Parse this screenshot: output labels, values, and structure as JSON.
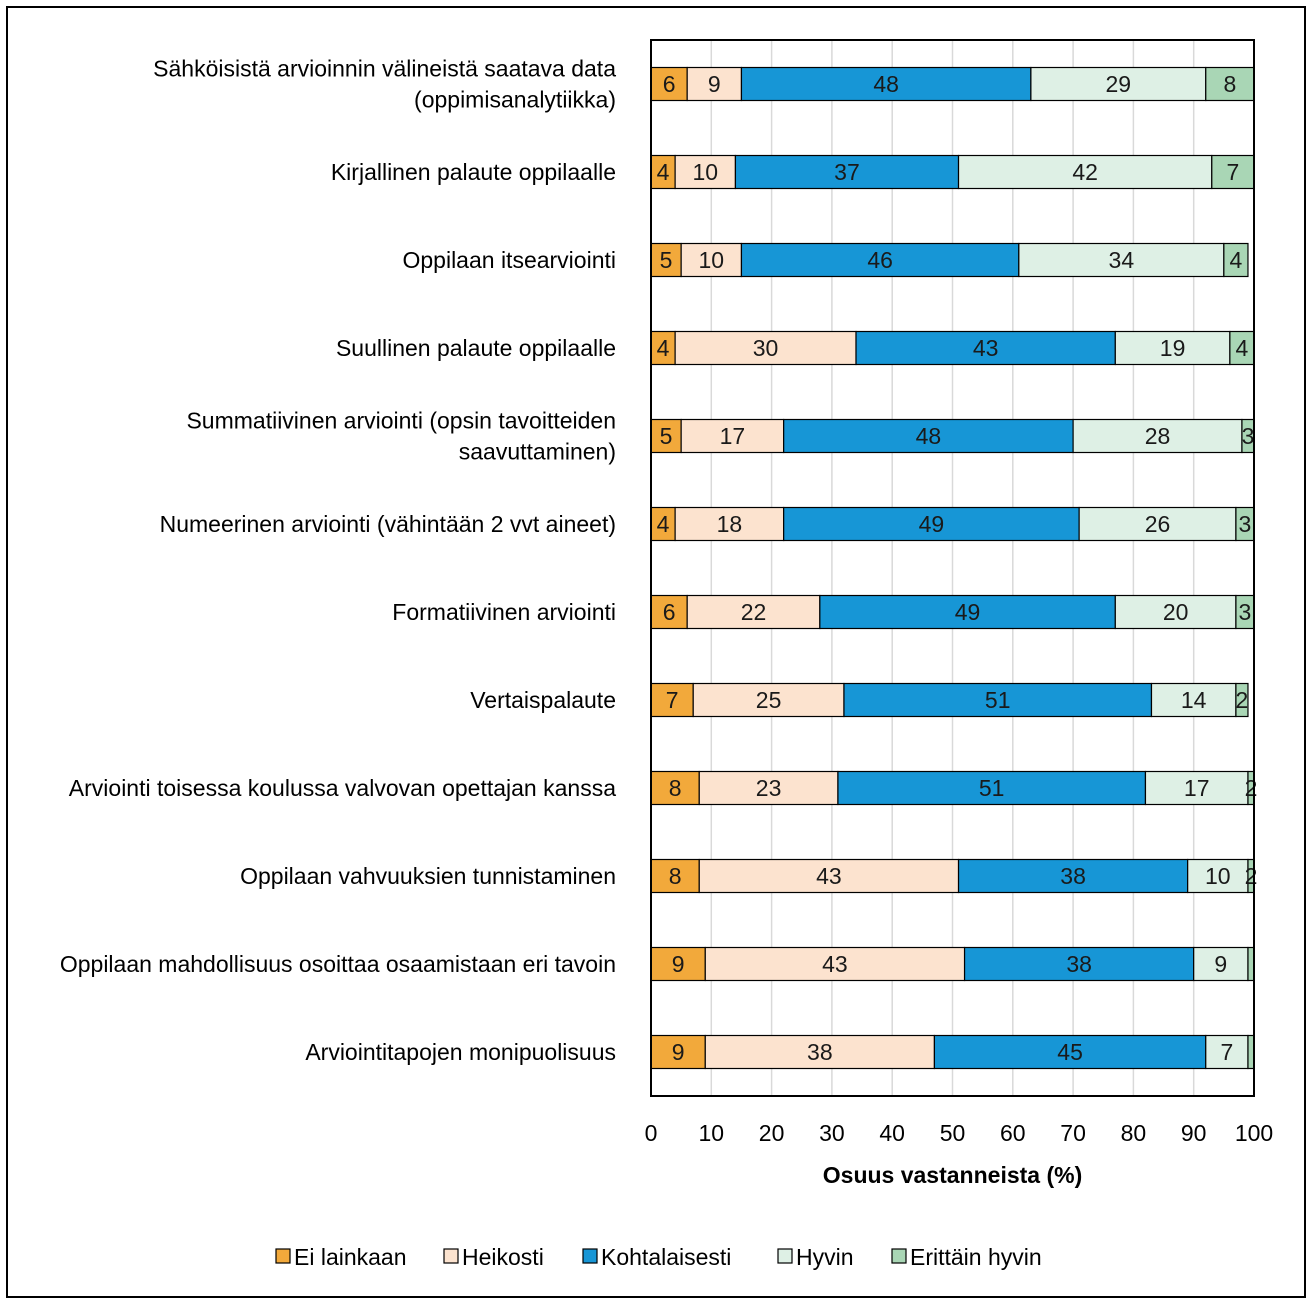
{
  "chart_data": {
    "type": "bar",
    "orientation": "horizontal",
    "stacked": true,
    "title": "",
    "xlabel": "Osuus vastanneista (%)",
    "ylabel": "",
    "xlim": [
      0,
      100
    ],
    "x_ticks": [
      "0",
      "10",
      "20",
      "30",
      "40",
      "50",
      "60",
      "70",
      "80",
      "90",
      "100"
    ],
    "grid": "vertical",
    "legend_position": "bottom",
    "categories": [
      [
        "Sähköisistä arvioinnin välineistä saatava data",
        "(oppimisanalytiikka)"
      ],
      [
        "Kirjallinen palaute oppilaalle"
      ],
      [
        "Oppilaan itsearviointi"
      ],
      [
        "Suullinen palaute oppilaalle"
      ],
      [
        "Summatiivinen arviointi (opsin tavoitteiden",
        "saavuttaminen)"
      ],
      [
        "Numeerinen arviointi (vähintään 2 vvt aineet)"
      ],
      [
        "Formatiivinen arviointi"
      ],
      [
        "Vertaispalaute"
      ],
      [
        "Arviointi toisessa koulussa valvovan opettajan kanssa"
      ],
      [
        "Oppilaan vahvuuksien tunnistaminen"
      ],
      [
        "Oppilaan mahdollisuus osoittaa osaamistaan eri tavoin"
      ],
      [
        "Arviointitapojen monipuolisuus"
      ]
    ],
    "series": [
      {
        "name": "Ei lainkaan",
        "color": "#F2A93B",
        "values": [
          6,
          4,
          5,
          4,
          5,
          4,
          6,
          7,
          8,
          8,
          9,
          9
        ]
      },
      {
        "name": "Heikosti",
        "color": "#FCE3CF",
        "values": [
          9,
          10,
          10,
          30,
          17,
          18,
          22,
          25,
          23,
          43,
          43,
          38
        ]
      },
      {
        "name": "Kohtalaisesti",
        "color": "#1796D6",
        "values": [
          48,
          37,
          46,
          43,
          48,
          49,
          49,
          51,
          51,
          38,
          38,
          45
        ]
      },
      {
        "name": "Hyvin",
        "color": "#DEF0E5",
        "values": [
          29,
          42,
          34,
          19,
          28,
          26,
          20,
          14,
          17,
          10,
          9,
          7
        ]
      },
      {
        "name": "Erittäin hyvin",
        "color": "#A9D6B5",
        "values": [
          8,
          7,
          4,
          4,
          3,
          3,
          3,
          2,
          2,
          2,
          1,
          1
        ]
      }
    ],
    "data_labels": [
      [
        "6",
        "9",
        "48",
        "29",
        "8"
      ],
      [
        "4",
        "10",
        "37",
        "42",
        "7"
      ],
      [
        "5",
        "10",
        "46",
        "34",
        "4"
      ],
      [
        "4",
        "30",
        "43",
        "19",
        "4"
      ],
      [
        "5",
        "17",
        "48",
        "28",
        "3"
      ],
      [
        "4",
        "18",
        "49",
        "26",
        "3"
      ],
      [
        "6",
        "22",
        "49",
        "20",
        "3"
      ],
      [
        "7",
        "25",
        "51",
        "14",
        "2"
      ],
      [
        "8",
        "23",
        "51",
        "17",
        "2"
      ],
      [
        "8",
        "43",
        "38",
        "10",
        "2"
      ],
      [
        "9",
        "43",
        "38",
        "9",
        ""
      ],
      [
        "9",
        "38",
        "45",
        "7",
        ""
      ]
    ]
  }
}
